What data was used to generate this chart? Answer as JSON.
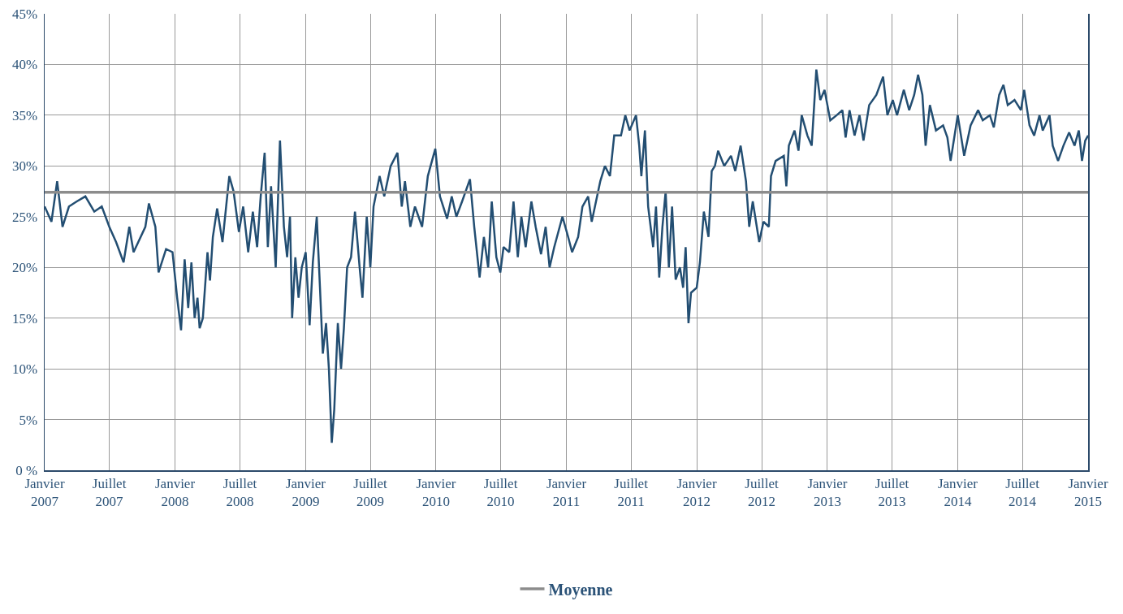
{
  "chart_data": {
    "type": "line",
    "xlim": [
      "2007-01-01",
      "2015-01-01"
    ],
    "xticks": [
      {
        "value": "2007-01-01",
        "label": "Janvier\n2007"
      },
      {
        "value": "2007-07-01",
        "label": "Juillet\n2007"
      },
      {
        "value": "2008-01-01",
        "label": "Janvier\n2008"
      },
      {
        "value": "2008-07-01",
        "label": "Juillet\n2008"
      },
      {
        "value": "2009-01-01",
        "label": "Janvier\n2009"
      },
      {
        "value": "2009-07-01",
        "label": "Juillet\n2009"
      },
      {
        "value": "2010-01-01",
        "label": "Janvier\n2010"
      },
      {
        "value": "2010-07-01",
        "label": "Juillet\n2010"
      },
      {
        "value": "2011-01-01",
        "label": "Janvier\n2011"
      },
      {
        "value": "2011-07-01",
        "label": "Juillet\n2011"
      },
      {
        "value": "2012-01-01",
        "label": "Janvier\n2012"
      },
      {
        "value": "2012-07-01",
        "label": "Juillet\n2012"
      },
      {
        "value": "2013-01-01",
        "label": "Janvier\n2013"
      },
      {
        "value": "2013-07-01",
        "label": "Juillet\n2013"
      },
      {
        "value": "2014-01-01",
        "label": "Janvier\n2014"
      },
      {
        "value": "2014-07-01",
        "label": "Juillet\n2014"
      },
      {
        "value": "2015-01-01",
        "label": "Janvier\n2015"
      }
    ],
    "ylim": [
      0,
      45
    ],
    "yticks": [
      {
        "value": 0,
        "label": "0 %"
      },
      {
        "value": 5,
        "label": "5%"
      },
      {
        "value": 10,
        "label": "10%"
      },
      {
        "value": 15,
        "label": "15%"
      },
      {
        "value": 20,
        "label": "20%"
      },
      {
        "value": 25,
        "label": "25%"
      },
      {
        "value": 30,
        "label": "30%"
      },
      {
        "value": 35,
        "label": "35%"
      },
      {
        "value": 40,
        "label": "40%"
      },
      {
        "value": 45,
        "label": "45%"
      }
    ],
    "grid": true,
    "legend": "bottom",
    "marker": "none",
    "line_style": "solid",
    "series": [
      {
        "color": "#234e72",
        "x": [
          "2007-01-01",
          "2007-01-20",
          "2007-02-05",
          "2007-02-20",
          "2007-03-10",
          "2007-04-01",
          "2007-04-25",
          "2007-05-20",
          "2007-06-10",
          "2007-07-01",
          "2007-07-20",
          "2007-08-10",
          "2007-08-26",
          "2007-09-07",
          "2007-10-10",
          "2007-10-20",
          "2007-11-07",
          "2007-11-16",
          "2007-12-07",
          "2007-12-25",
          "2008-01-07",
          "2008-01-18",
          "2008-01-28",
          "2008-02-07",
          "2008-02-16",
          "2008-02-25",
          "2008-03-04",
          "2008-03-10",
          "2008-03-19",
          "2008-04-01",
          "2008-04-08",
          "2008-04-16",
          "2008-04-28",
          "2008-05-13",
          "2008-06-01",
          "2008-06-13",
          "2008-06-28",
          "2008-07-10",
          "2008-07-24",
          "2008-08-06",
          "2008-08-18",
          "2008-08-28",
          "2008-09-08",
          "2008-09-17",
          "2008-09-26",
          "2008-10-09",
          "2008-10-21",
          "2008-11-01",
          "2008-11-10",
          "2008-11-18",
          "2008-11-24",
          "2008-12-03",
          "2008-12-12",
          "2008-12-21",
          "2009-01-01",
          "2009-01-12",
          "2009-01-21",
          "2009-02-01",
          "2009-02-10",
          "2009-02-18",
          "2009-02-27",
          "2009-03-07",
          "2009-03-15",
          "2009-03-22",
          "2009-04-01",
          "2009-04-10",
          "2009-04-18",
          "2009-04-27",
          "2009-05-08",
          "2009-05-19",
          "2009-06-01",
          "2009-06-09",
          "2009-06-21",
          "2009-07-01",
          "2009-07-10",
          "2009-07-27",
          "2009-08-09",
          "2009-08-27",
          "2009-09-15",
          "2009-09-27",
          "2009-10-06",
          "2009-10-21",
          "2009-11-03",
          "2009-11-23",
          "2009-12-09",
          "2009-12-30",
          "2010-01-12",
          "2010-02-01",
          "2010-02-14",
          "2010-02-27",
          "2010-03-15",
          "2010-04-06",
          "2010-04-18",
          "2010-05-03",
          "2010-05-15",
          "2010-05-27",
          "2010-06-06",
          "2010-06-19",
          "2010-06-30",
          "2010-07-09",
          "2010-07-25",
          "2010-08-06",
          "2010-08-18",
          "2010-08-28",
          "2010-09-09",
          "2010-09-25",
          "2010-10-07",
          "2010-10-22",
          "2010-11-04",
          "2010-11-15",
          "2010-11-28",
          "2010-12-21",
          "2011-01-06",
          "2011-01-17",
          "2011-02-03",
          "2011-02-15",
          "2011-03-03",
          "2011-03-13",
          "2011-04-06",
          "2011-04-19",
          "2011-05-03",
          "2011-05-15",
          "2011-06-03",
          "2011-06-15",
          "2011-06-27",
          "2011-07-15",
          "2011-07-24",
          "2011-07-30",
          "2011-08-09",
          "2011-08-18",
          "2011-09-01",
          "2011-09-09",
          "2011-09-18",
          "2011-09-27",
          "2011-10-06",
          "2011-10-15",
          "2011-10-24",
          "2011-11-03",
          "2011-11-15",
          "2011-11-24",
          "2011-12-01",
          "2011-12-09",
          "2011-12-16",
          "2012-01-01",
          "2012-01-10",
          "2012-01-21",
          "2012-02-03",
          "2012-02-12",
          "2012-02-21",
          "2012-03-01",
          "2012-03-18",
          "2012-04-06",
          "2012-04-18",
          "2012-05-03",
          "2012-05-18",
          "2012-05-27",
          "2012-06-06",
          "2012-06-24",
          "2012-07-06",
          "2012-07-21",
          "2012-07-27",
          "2012-08-09",
          "2012-09-01",
          "2012-09-08",
          "2012-09-15",
          "2012-10-01",
          "2012-10-12",
          "2012-10-21",
          "2012-11-06",
          "2012-11-18",
          "2012-12-01",
          "2012-12-12",
          "2012-12-24",
          "2013-01-09",
          "2013-01-27",
          "2013-02-12",
          "2013-02-21",
          "2013-03-04",
          "2013-03-18",
          "2013-04-01",
          "2013-04-12",
          "2013-04-28",
          "2013-05-18",
          "2013-06-06",
          "2013-06-18",
          "2013-07-03",
          "2013-07-15",
          "2013-08-03",
          "2013-08-18",
          "2013-09-01",
          "2013-09-12",
          "2013-09-24",
          "2013-10-03",
          "2013-10-15",
          "2013-11-01",
          "2013-11-21",
          "2013-12-03",
          "2013-12-12",
          "2014-01-01",
          "2014-01-10",
          "2014-01-19",
          "2014-02-06",
          "2014-02-27",
          "2014-03-12",
          "2014-04-01",
          "2014-04-12",
          "2014-04-27",
          "2014-05-09",
          "2014-05-21",
          "2014-06-09",
          "2014-06-27",
          "2014-07-06",
          "2014-07-21",
          "2014-08-03",
          "2014-08-18",
          "2014-08-27",
          "2014-09-15",
          "2014-09-24",
          "2014-10-09",
          "2014-10-24",
          "2014-11-09",
          "2014-11-24",
          "2014-12-06",
          "2014-12-15",
          "2014-12-24",
          "2015-01-01"
        ],
        "values": [
          26,
          24.5,
          28.5,
          24,
          26,
          26.5,
          27,
          25.5,
          26,
          24,
          22.5,
          20.5,
          24,
          21.5,
          24,
          26.3,
          24,
          19.5,
          21.8,
          21.5,
          17,
          13.8,
          20.8,
          16,
          20.5,
          15,
          17,
          14,
          15,
          21.5,
          18.7,
          23,
          25.8,
          22.5,
          29,
          27.5,
          23.5,
          26,
          21.5,
          25.5,
          22,
          27,
          31.3,
          22,
          28,
          20,
          32.5,
          24,
          21,
          25,
          15,
          21,
          17,
          20,
          21.5,
          14.3,
          20.5,
          25,
          18,
          11.5,
          14.5,
          10,
          2.7,
          6,
          14.5,
          10,
          14,
          20,
          21,
          25.5,
          20,
          17,
          25,
          20,
          26,
          29,
          27,
          30,
          31.3,
          26,
          28.5,
          24,
          26,
          24,
          29,
          31.7,
          27,
          24.8,
          27,
          25,
          26.5,
          28.7,
          24,
          19,
          23,
          20,
          26.5,
          21,
          19.5,
          22,
          21.5,
          26.5,
          21,
          25,
          22,
          26.5,
          24,
          21.3,
          24,
          20,
          22,
          25,
          23,
          21.5,
          23,
          26,
          27,
          24.5,
          28.5,
          30,
          29,
          33,
          33,
          35,
          33.5,
          35,
          32,
          29,
          33.5,
          26,
          22,
          26,
          19,
          24,
          27.5,
          20,
          26,
          18.8,
          20,
          18,
          22,
          14.5,
          17.5,
          18,
          20.5,
          25.5,
          23,
          29.5,
          30,
          31.5,
          30,
          31,
          29.5,
          32,
          28.5,
          24,
          26.5,
          22.5,
          24.5,
          24,
          29,
          30.5,
          31,
          28,
          32,
          33.5,
          31.5,
          35,
          33,
          32,
          39.5,
          36.5,
          37.5,
          34.5,
          35,
          35.5,
          32.8,
          35.5,
          33,
          35,
          32.5,
          36,
          37,
          38.8,
          35,
          36.5,
          35,
          37.5,
          35.5,
          37,
          39,
          37,
          32,
          36,
          33.5,
          34,
          32.8,
          30.5,
          35,
          33,
          31,
          34,
          35.5,
          34.5,
          35,
          33.8,
          37,
          38,
          36,
          36.5,
          35.5,
          37.5,
          34,
          33,
          35,
          33.5,
          35,
          32,
          30.5,
          32,
          33.3,
          32,
          33.5,
          30.5,
          32.5,
          33
        ]
      },
      {
        "name": "Moyenne",
        "color": "#8c8c8c",
        "x": [
          "2007-01-01",
          "2015-01-01"
        ],
        "values": [
          27.4,
          27.4
        ]
      }
    ]
  }
}
